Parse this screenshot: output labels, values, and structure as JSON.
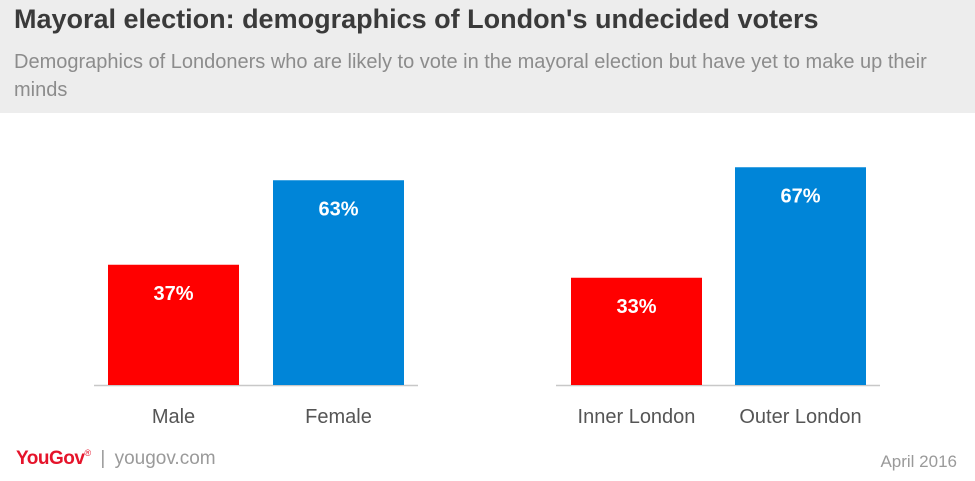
{
  "title": "Mayoral election: demographics of London's undecided voters",
  "subtitle": "Demographics of Londoners who are likely to vote in the mayoral election but have yet to make up their minds",
  "footer": {
    "brand": "YouGov",
    "separator": "|",
    "site": "yougov.com",
    "date": "April 2016"
  },
  "colors": {
    "red": "#ff0000",
    "blue": "#0085d8"
  },
  "chart_data": [
    {
      "type": "bar",
      "categories": [
        "Male",
        "Female"
      ],
      "values": [
        37,
        63
      ],
      "labels": [
        "37%",
        "63%"
      ],
      "colors": [
        "#ff0000",
        "#0085d8"
      ],
      "ylim": [
        0,
        70
      ]
    },
    {
      "type": "bar",
      "categories": [
        "Inner London",
        "Outer London"
      ],
      "values": [
        33,
        67
      ],
      "labels": [
        "33%",
        "67%"
      ],
      "colors": [
        "#ff0000",
        "#0085d8"
      ],
      "ylim": [
        0,
        70
      ]
    }
  ]
}
